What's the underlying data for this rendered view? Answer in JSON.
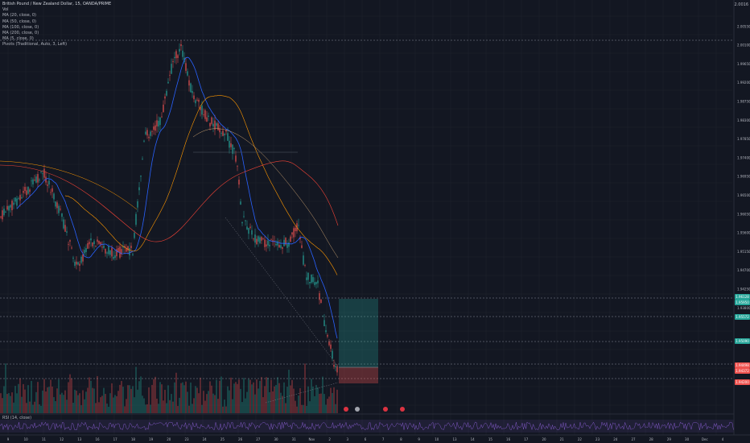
{
  "legend": {
    "title": "British Pound / New Zealand Dollar, 15, OANDA/PRIME",
    "lines": [
      "Vol",
      "MA (20, close, 0)",
      "MA (50, close, 0)",
      "MA (100, close, 0)",
      "MA (200, close, 0)",
      "MA (5, close, 0)",
      "Pivots (Traditional, Auto, 3, Left)"
    ]
  },
  "rsi_label": "RSI (14, close)",
  "corner_price": "2.0016",
  "colors": {
    "background": "#131722",
    "bull": "#26a69a",
    "bear": "#ef5350",
    "ma_blue": "#2962ff",
    "ma_orange": "#ff9800",
    "ma_red": "#f44336",
    "rsi_band": "#7e57c2"
  },
  "price_axis": [
    "2.0016",
    "2.00550",
    "2.00100",
    "1.99650",
    "1.99200",
    "1.98750",
    "1.98300",
    "1.97850",
    "1.97400",
    "1.96950",
    "1.96500",
    "1.96050",
    "1.95600",
    "1.95150",
    "1.94700",
    "1.94250",
    "1.93800"
  ],
  "time_axis": [
    "9",
    "10",
    "11",
    "12",
    "13",
    "16",
    "17",
    "18",
    "19",
    "20",
    "23",
    "24",
    "25",
    "26",
    "27",
    "30",
    "31",
    "Nov",
    "2",
    "3",
    "6",
    "7",
    "8",
    "9",
    "10",
    "13",
    "14",
    "15",
    "16",
    "17",
    "20",
    "21",
    "22",
    "23",
    "24",
    "27",
    "28",
    "29",
    "30",
    "Dec",
    "4"
  ],
  "price_tags": [
    {
      "label": "1.96128",
      "color": "#26a69a"
    },
    {
      "label": "1.95950",
      "color": "#26a69a"
    },
    {
      "label": "1.95572",
      "color": "#26a69a"
    },
    {
      "label": "1.95090",
      "color": "#26a69a"
    },
    {
      "label": "1.94498",
      "color": "#ef5350"
    },
    {
      "label": "1.94372",
      "color": "#ef5350"
    },
    {
      "label": "1.94200",
      "color": "#ef5350"
    }
  ],
  "events": [
    "event-flag",
    "event-flag",
    "event-flag",
    "event-flag"
  ]
}
